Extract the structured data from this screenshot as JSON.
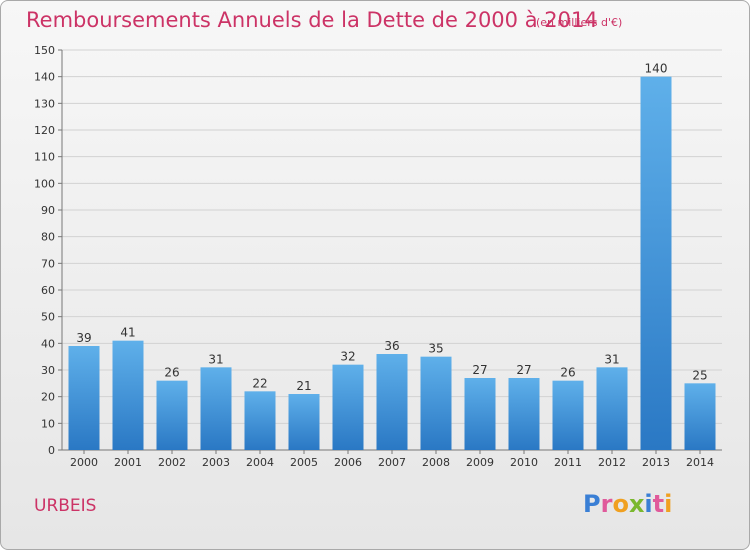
{
  "header": {
    "title": "Remboursements Annuels de la Dette de 2000 à 2014",
    "subtitle": "(en milliers d'€)"
  },
  "footer": {
    "town": "URBEIS",
    "logo_text": "Proxiti",
    "logo_colors": [
      "#3a7fd5",
      "#e05a9b",
      "#f0a020",
      "#7ab82e",
      "#3a7fd5",
      "#e05a9b",
      "#f0a020"
    ]
  },
  "colors": {
    "bar_light": "#5fb0ea",
    "bar_dark": "#2a78c4",
    "title": "#cc3366",
    "grid": "#d2d2d2"
  },
  "chart_data": {
    "type": "bar",
    "title": "Remboursements Annuels de la Dette de 2000 à 2014",
    "subtitle": "(en milliers d'€)",
    "categories": [
      "2000",
      "2001",
      "2002",
      "2003",
      "2004",
      "2005",
      "2006",
      "2007",
      "2008",
      "2009",
      "2010",
      "2011",
      "2012",
      "2013",
      "2014"
    ],
    "values": [
      39,
      41,
      26,
      31,
      22,
      21,
      32,
      36,
      35,
      27,
      27,
      26,
      31,
      140,
      25
    ],
    "ylim": [
      0,
      150
    ],
    "yticks": [
      0,
      10,
      20,
      30,
      40,
      50,
      60,
      70,
      80,
      90,
      100,
      110,
      120,
      130,
      140,
      150
    ],
    "grid": true,
    "data_labels": true,
    "legend": "none"
  }
}
